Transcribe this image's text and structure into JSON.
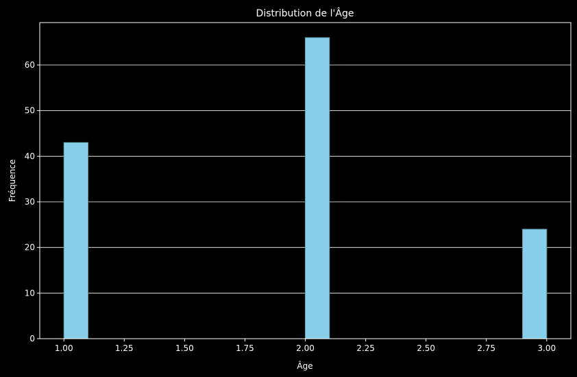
{
  "chart_data": {
    "type": "bar",
    "title": "Distribution de l'Âge",
    "xlabel": "Âge",
    "ylabel": "Fréquence",
    "xlim": [
      0.9,
      3.1
    ],
    "ylim": [
      0,
      69.3
    ],
    "bars": [
      {
        "x0": 1.0,
        "x1": 1.1,
        "value": 43
      },
      {
        "x0": 2.0,
        "x1": 2.1,
        "value": 66
      },
      {
        "x0": 2.9,
        "x1": 3.0,
        "value": 24
      }
    ],
    "x_ticks": [
      1.0,
      1.25,
      1.5,
      1.75,
      2.0,
      2.25,
      2.5,
      2.75,
      3.0
    ],
    "x_tick_labels": [
      "1.00",
      "1.25",
      "1.50",
      "1.75",
      "2.00",
      "2.25",
      "2.50",
      "2.75",
      "3.00"
    ],
    "y_ticks": [
      0,
      10,
      20,
      30,
      40,
      50,
      60
    ],
    "y_tick_labels": [
      "0",
      "10",
      "20",
      "30",
      "40",
      "50",
      "60"
    ],
    "grid": "y",
    "colors": {
      "bar": "#87ceeb",
      "bar_edge": "#5f9ea8",
      "background": "#000000",
      "foreground": "#ffffff"
    }
  }
}
